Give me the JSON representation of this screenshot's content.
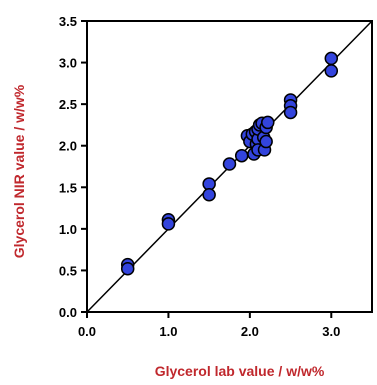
{
  "chart_data": {
    "type": "scatter",
    "xlabel": "Glycerol lab value / w/w%",
    "ylabel": "Glycerol NIR value / w/w%",
    "xlim": [
      0.0,
      3.5
    ],
    "ylim": [
      0.0,
      3.5
    ],
    "x_ticks": [
      0.0,
      1.0,
      2.0,
      3.0
    ],
    "x_tick_labels": [
      "0.0",
      "1.0",
      "2.0",
      "3.0"
    ],
    "y_ticks": [
      0.0,
      0.5,
      1.0,
      1.5,
      2.0,
      2.5,
      3.0,
      3.5
    ],
    "y_tick_labels": [
      "0.0",
      "0.5",
      "1.0",
      "1.5",
      "2.0",
      "2.5",
      "3.0",
      "3.5"
    ],
    "grid": false,
    "reference_line": {
      "from": [
        0.0,
        0.0
      ],
      "to": [
        3.5,
        3.5
      ]
    },
    "points": [
      {
        "x": 0.5,
        "y": 0.57
      },
      {
        "x": 0.5,
        "y": 0.52
      },
      {
        "x": 1.0,
        "y": 1.11
      },
      {
        "x": 1.0,
        "y": 1.06
      },
      {
        "x": 1.5,
        "y": 1.54
      },
      {
        "x": 1.5,
        "y": 1.41
      },
      {
        "x": 1.75,
        "y": 1.78
      },
      {
        "x": 1.9,
        "y": 1.88
      },
      {
        "x": 1.97,
        "y": 2.12
      },
      {
        "x": 2.0,
        "y": 2.05
      },
      {
        "x": 2.03,
        "y": 2.14
      },
      {
        "x": 2.05,
        "y": 1.9
      },
      {
        "x": 2.07,
        "y": 2.17
      },
      {
        "x": 2.08,
        "y": 2.02
      },
      {
        "x": 2.1,
        "y": 2.08
      },
      {
        "x": 2.1,
        "y": 1.95
      },
      {
        "x": 2.1,
        "y": 2.2
      },
      {
        "x": 2.12,
        "y": 2.25
      },
      {
        "x": 2.15,
        "y": 2.27
      },
      {
        "x": 2.17,
        "y": 2.1
      },
      {
        "x": 2.18,
        "y": 1.95
      },
      {
        "x": 2.2,
        "y": 2.05
      },
      {
        "x": 2.2,
        "y": 2.22
      },
      {
        "x": 2.22,
        "y": 2.28
      },
      {
        "x": 2.5,
        "y": 2.55
      },
      {
        "x": 2.5,
        "y": 2.48
      },
      {
        "x": 2.5,
        "y": 2.4
      },
      {
        "x": 3.0,
        "y": 3.05
      },
      {
        "x": 3.0,
        "y": 2.9
      }
    ],
    "marker": {
      "shape": "circle",
      "fill": "#3344dd",
      "stroke": "#000000"
    },
    "axis_title_color": "#c0282d",
    "reference_line_color": "#000000"
  }
}
